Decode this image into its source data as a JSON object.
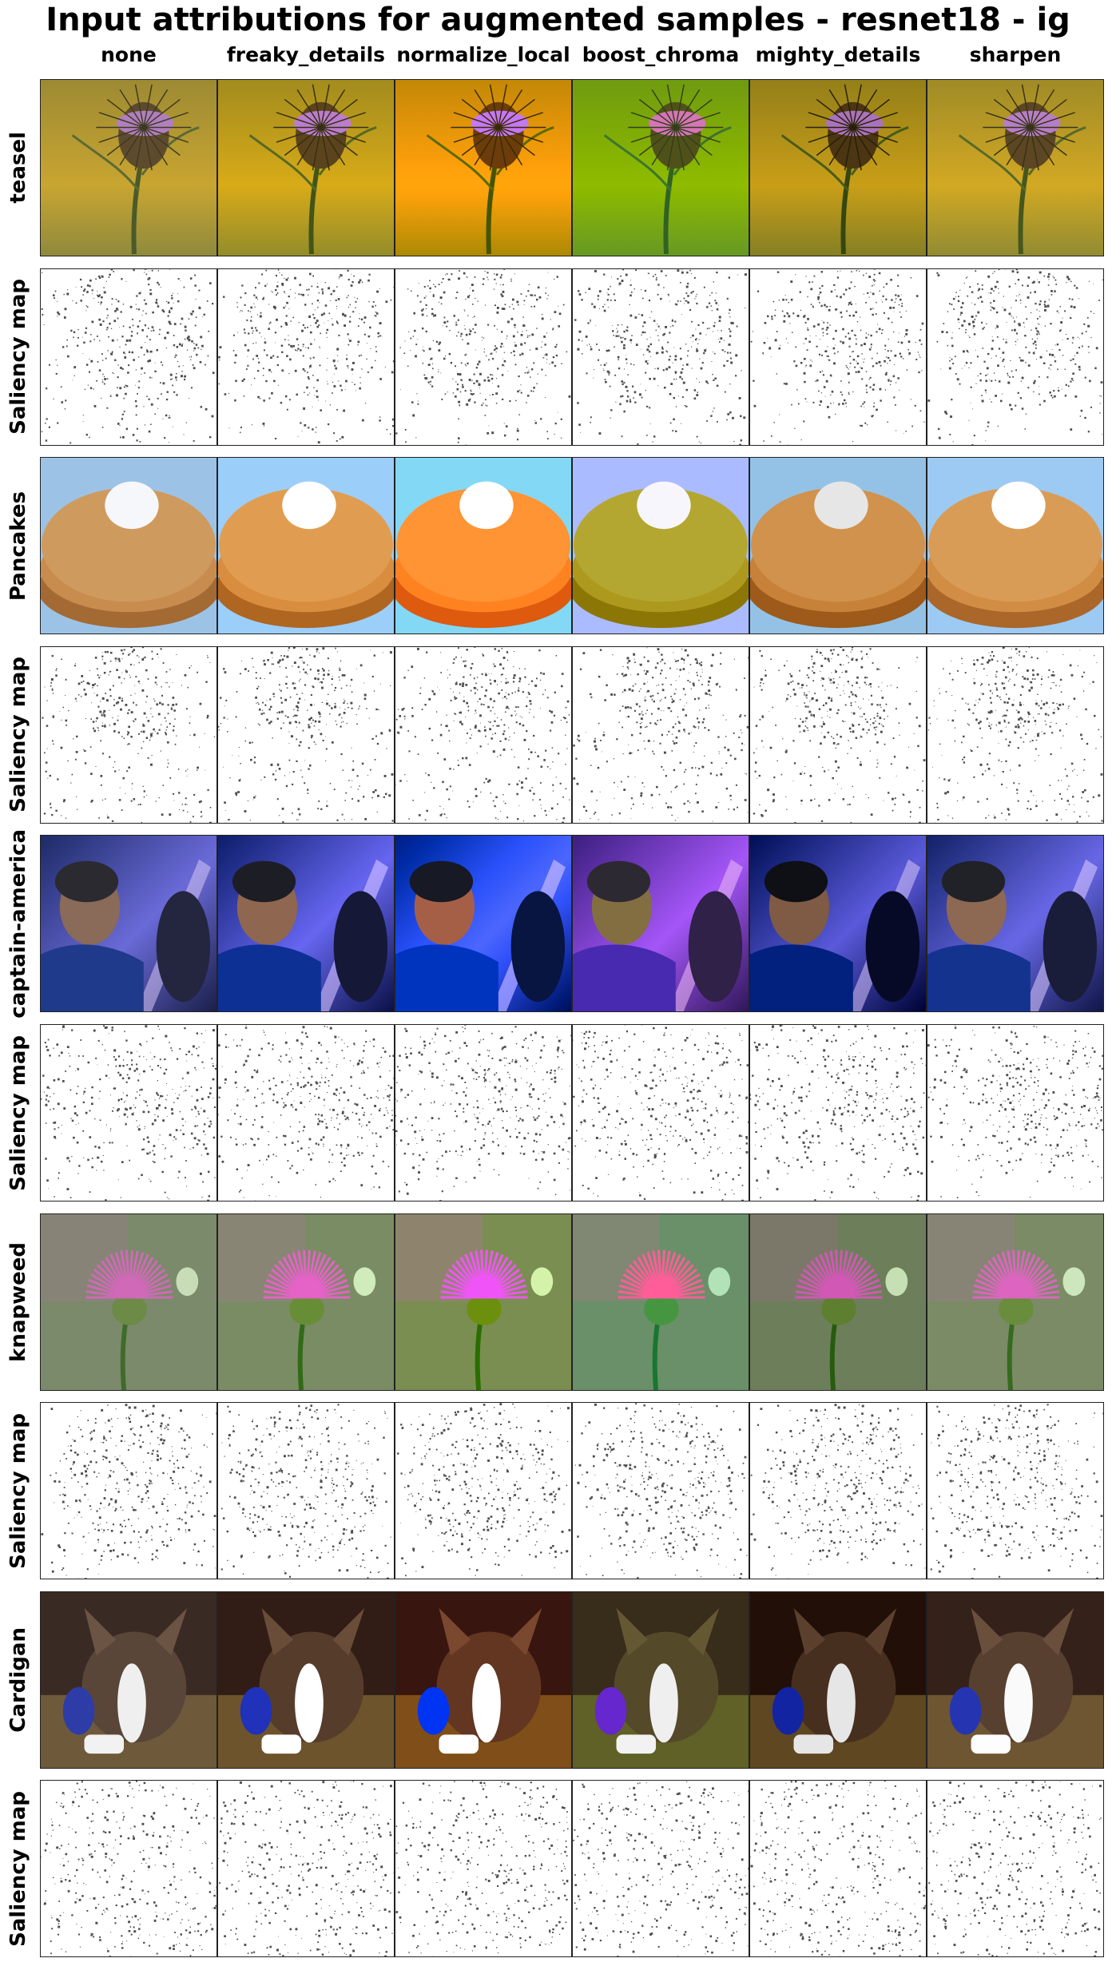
{
  "figure": {
    "title": "Input attributions for augmented samples - resnet18 - ig",
    "columns": [
      "none",
      "freaky_details",
      "normalize_local",
      "boost_chroma",
      "mighty_details",
      "sharpen"
    ],
    "rows": [
      {
        "label": "teasel",
        "kind": "image",
        "subject": "teasel"
      },
      {
        "label": "Saliency map",
        "kind": "saliency",
        "subject": "teasel"
      },
      {
        "label": "Pancakes",
        "kind": "image",
        "subject": "pancakes"
      },
      {
        "label": "Saliency map",
        "kind": "saliency",
        "subject": "pancakes"
      },
      {
        "label": "captain-america",
        "kind": "image",
        "subject": "captain"
      },
      {
        "label": "Saliency map",
        "kind": "saliency",
        "subject": "captain"
      },
      {
        "label": "knapweed",
        "kind": "image",
        "subject": "knapweed"
      },
      {
        "label": "Saliency map",
        "kind": "saliency",
        "subject": "knapweed"
      },
      {
        "label": "Cardigan",
        "kind": "image",
        "subject": "cardigan"
      },
      {
        "label": "Saliency map",
        "kind": "saliency",
        "subject": "cardigan"
      }
    ]
  }
}
